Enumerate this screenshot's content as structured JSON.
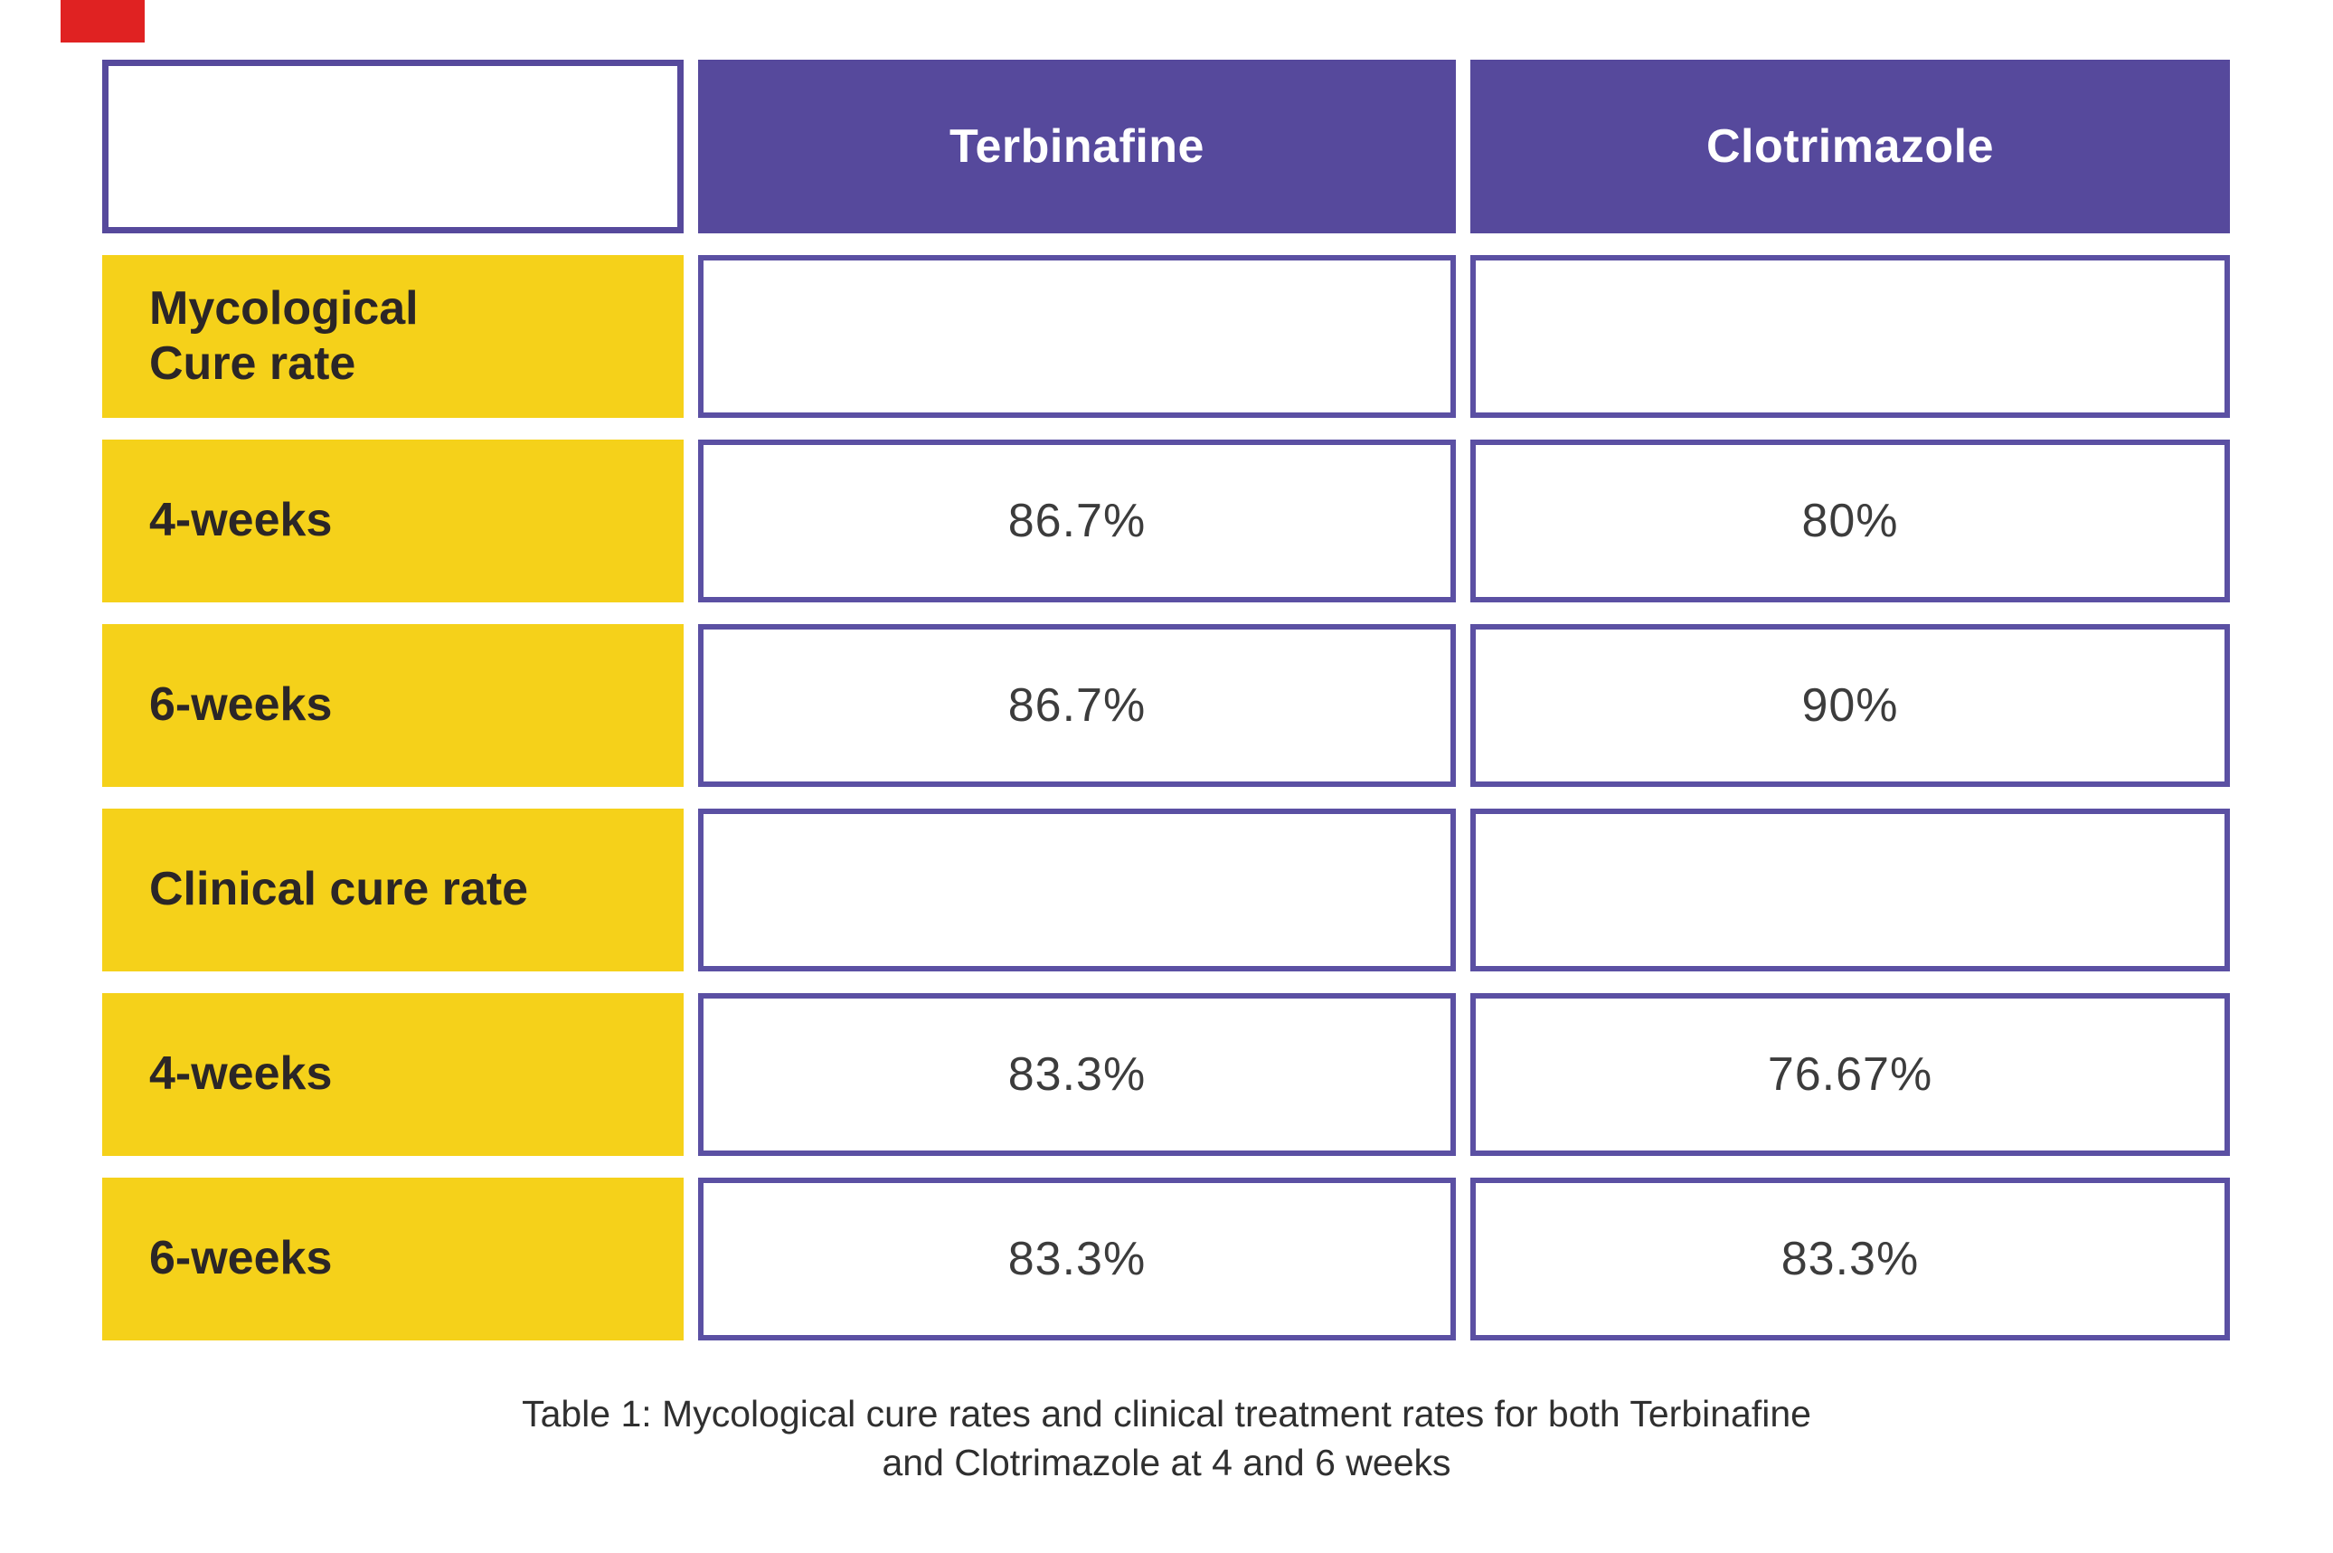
{
  "colors": {
    "header_purple": "#56499C",
    "cell_border_purple": "#5B50A3",
    "label_yellow": "#F5D11A",
    "red_corner_mark": "#E02222",
    "header_text": "#FFFFFF",
    "label_text": "#2B2627",
    "value_text": "#3C3C3C",
    "caption_text": "#2F2F2F"
  },
  "table": {
    "header": {
      "terbinafine": "Terbinafine",
      "clotrimazole": "Clotrimazole"
    },
    "rows": [
      {
        "label": "Mycological\nCure rate",
        "terbinafine": "",
        "clotrimazole": ""
      },
      {
        "label": "4-weeks",
        "terbinafine": "86.7%",
        "clotrimazole": "80%"
      },
      {
        "label": "6-weeks",
        "terbinafine": "86.7%",
        "clotrimazole": "90%"
      },
      {
        "label": "Clinical cure rate",
        "terbinafine": "",
        "clotrimazole": ""
      },
      {
        "label": "4-weeks",
        "terbinafine": "83.3%",
        "clotrimazole": "76.67%"
      },
      {
        "label": "6-weeks",
        "terbinafine": "83.3%",
        "clotrimazole": "83.3%"
      }
    ],
    "caption_line1": "Table 1: Mycological cure rates and clinical treatment rates for both Terbinafine",
    "caption_line2": "and Clotrimazole at 4 and 6 weeks"
  },
  "chart_data": {
    "type": "table",
    "title": "Table 1: Mycological cure rates and clinical treatment rates for both Terbinafine and Clotrimazole at 4 and 6 weeks",
    "columns": [
      "",
      "Terbinafine",
      "Clotrimazole"
    ],
    "rows": [
      [
        "Mycological Cure rate",
        "",
        ""
      ],
      [
        "4-weeks",
        "86.7%",
        "80%"
      ],
      [
        "6-weeks",
        "86.7%",
        "90%"
      ],
      [
        "Clinical cure rate",
        "",
        ""
      ],
      [
        "4-weeks",
        "83.3%",
        "76.67%"
      ],
      [
        "6-weeks",
        "83.3%",
        "83.3%"
      ]
    ],
    "series": [
      {
        "name": "Terbinafine",
        "values": [
          86.7,
          86.7,
          83.3,
          83.3
        ]
      },
      {
        "name": "Clotrimazole",
        "values": [
          80,
          90,
          76.67,
          83.3
        ]
      }
    ],
    "categories": [
      "Mycological 4-weeks",
      "Mycological 6-weeks",
      "Clinical 4-weeks",
      "Clinical 6-weeks"
    ]
  }
}
